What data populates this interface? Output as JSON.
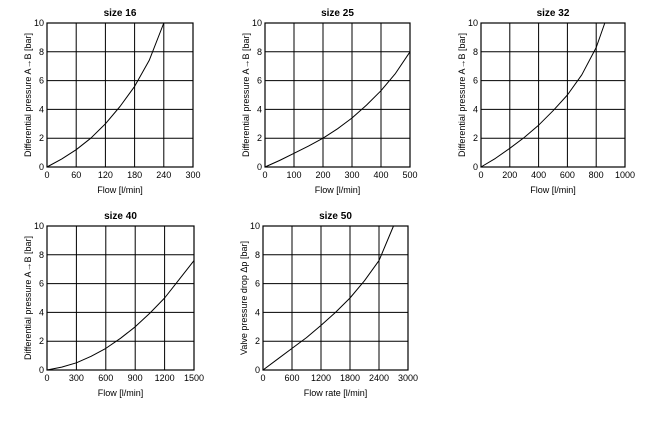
{
  "chart_data": [
    {
      "type": "line",
      "title": "size 16",
      "xlabel": "Flow [l/min]",
      "ylabel": "Differential pressure A→B [bar]",
      "xlim": [
        0,
        300
      ],
      "ylim": [
        0,
        10
      ],
      "xticks": [
        0,
        60,
        120,
        180,
        240,
        300
      ],
      "yticks": [
        0,
        2,
        4,
        6,
        8,
        10
      ],
      "series": [
        {
          "name": "size 16",
          "x": [
            0,
            30,
            60,
            90,
            120,
            150,
            180,
            210,
            240
          ],
          "y": [
            0,
            0.55,
            1.2,
            2.0,
            3.0,
            4.2,
            5.6,
            7.4,
            10.0
          ]
        }
      ]
    },
    {
      "type": "line",
      "title": "size 25",
      "xlabel": "Flow [l/min]",
      "ylabel": "Differential pressure A→B [bar]",
      "xlim": [
        0,
        500
      ],
      "ylim": [
        0,
        10
      ],
      "xticks": [
        0,
        100,
        200,
        300,
        400,
        500
      ],
      "yticks": [
        0,
        2,
        4,
        6,
        8,
        10
      ],
      "series": [
        {
          "name": "size 25",
          "x": [
            0,
            50,
            100,
            150,
            200,
            250,
            300,
            350,
            400,
            450,
            500
          ],
          "y": [
            0,
            0.45,
            0.95,
            1.45,
            2.0,
            2.65,
            3.4,
            4.3,
            5.3,
            6.5,
            8.0
          ]
        }
      ]
    },
    {
      "type": "line",
      "title": "size 32",
      "xlabel": "Flow [l/min]",
      "ylabel": "Differential pressure A→B [bar]",
      "xlim": [
        0,
        1000
      ],
      "ylim": [
        0,
        10
      ],
      "xticks": [
        0,
        200,
        400,
        600,
        800,
        1000
      ],
      "yticks": [
        0,
        2,
        4,
        6,
        8,
        10
      ],
      "series": [
        {
          "name": "size 32",
          "x": [
            0,
            100,
            200,
            300,
            400,
            500,
            600,
            700,
            800,
            860
          ],
          "y": [
            0,
            0.6,
            1.3,
            2.05,
            2.9,
            3.9,
            5.0,
            6.4,
            8.3,
            10.0
          ]
        }
      ]
    },
    {
      "type": "line",
      "title": "size 40",
      "xlabel": "Flow [l/min]",
      "ylabel": "Differential pressure A→B [bar]",
      "xlim": [
        0,
        1500
      ],
      "ylim": [
        0,
        10
      ],
      "xticks": [
        0,
        300,
        600,
        900,
        1200,
        1500
      ],
      "yticks": [
        0,
        2,
        4,
        6,
        8,
        10
      ],
      "series": [
        {
          "name": "size 40",
          "x": [
            0,
            150,
            300,
            450,
            600,
            750,
            900,
            1050,
            1200,
            1350,
            1500
          ],
          "y": [
            0,
            0.2,
            0.5,
            0.95,
            1.5,
            2.2,
            3.0,
            3.95,
            5.0,
            6.3,
            7.6
          ]
        }
      ]
    },
    {
      "type": "line",
      "title": "size 50",
      "xlabel": "Flow rate [l/min]",
      "ylabel": "Valve pressure drop Δp [bar]",
      "xlim": [
        0,
        3000
      ],
      "ylim": [
        0,
        10
      ],
      "xticks": [
        0,
        600,
        1200,
        1800,
        2400,
        3000
      ],
      "yticks": [
        0,
        2,
        4,
        6,
        8,
        10
      ],
      "series": [
        {
          "name": "size 50",
          "x": [
            0,
            300,
            600,
            900,
            1200,
            1500,
            1800,
            2100,
            2400,
            2700
          ],
          "y": [
            0,
            0.75,
            1.5,
            2.25,
            3.1,
            4.0,
            5.0,
            6.2,
            7.6,
            10.0
          ]
        }
      ]
    }
  ]
}
